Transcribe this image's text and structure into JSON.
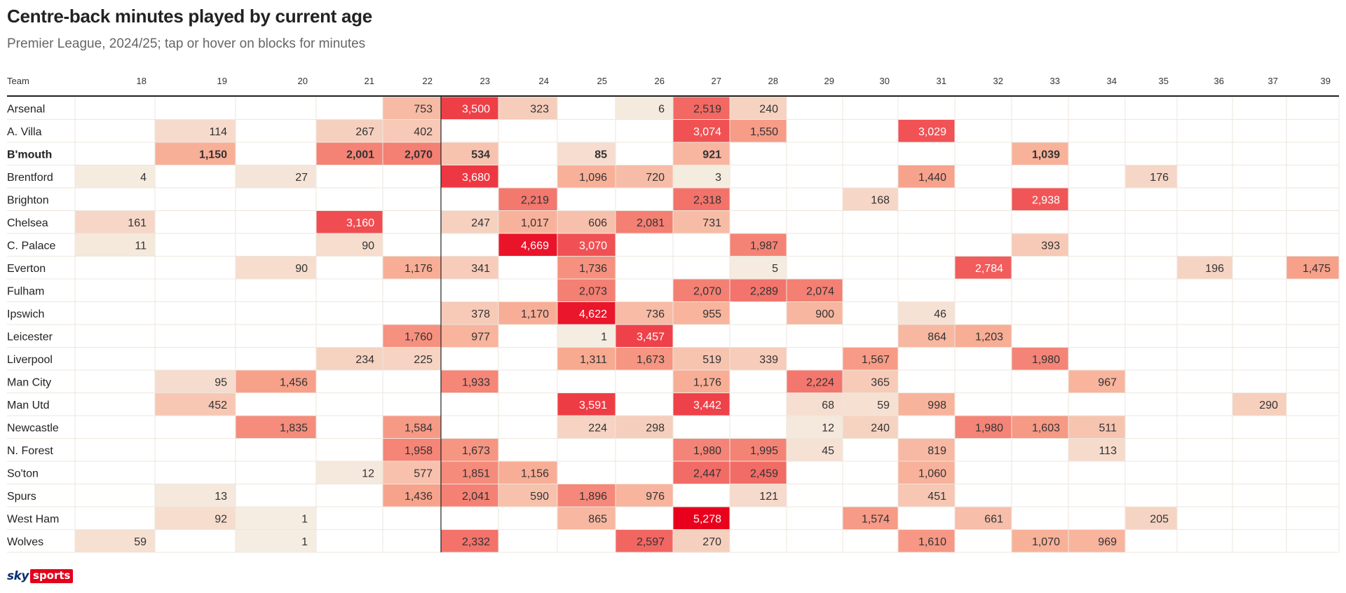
{
  "title": "Centre-back minutes played by current age",
  "subtitle": "Premier League, 2024/25; tap or hover on blocks for minutes",
  "logo": {
    "sky": "sky",
    "sports": "sports"
  },
  "colors": {
    "scale_low": "#f5efe4",
    "scale_high": "#e8001c",
    "grid": "#ede6dd",
    "axis_line": "#222222",
    "text_dark": "#333333",
    "text_light": "#ffffff"
  },
  "chart_data": {
    "type": "heatmap",
    "title": "Centre-back minutes played by current age",
    "subtitle": "Premier League, 2024/25; tap or hover on blocks for minutes",
    "row_header": "Team",
    "ages": [
      18,
      19,
      20,
      21,
      22,
      23,
      24,
      25,
      26,
      27,
      28,
      29,
      30,
      31,
      32,
      33,
      34,
      35,
      36,
      37,
      39
    ],
    "age_labels": [
      "18",
      "19",
      "20",
      "21",
      "22",
      "23",
      "24",
      "25",
      "26",
      "27",
      "28",
      "29",
      "30",
      "31",
      "32",
      "33",
      "34",
      "35",
      "36",
      "37",
      "39"
    ],
    "highlighted_team": "B'mouth",
    "vertical_marker_before_age": 23,
    "value_max": 5278,
    "rows": [
      {
        "team": "Arsenal",
        "values": [
          null,
          null,
          null,
          null,
          753,
          3500,
          323,
          null,
          6,
          2519,
          240,
          null,
          null,
          null,
          null,
          null,
          null,
          null,
          null,
          null,
          null
        ]
      },
      {
        "team": "A. Villa",
        "values": [
          null,
          114,
          null,
          267,
          402,
          null,
          null,
          null,
          null,
          3074,
          1550,
          null,
          null,
          3029,
          null,
          null,
          null,
          null,
          null,
          null,
          null
        ]
      },
      {
        "team": "B'mouth",
        "values": [
          null,
          1150,
          null,
          2001,
          2070,
          534,
          null,
          85,
          null,
          921,
          null,
          null,
          null,
          null,
          null,
          1039,
          null,
          null,
          null,
          null,
          null
        ]
      },
      {
        "team": "Brentford",
        "values": [
          4,
          null,
          27,
          null,
          null,
          3680,
          null,
          1096,
          720,
          3,
          null,
          null,
          null,
          1440,
          null,
          null,
          null,
          176,
          null,
          null,
          null
        ]
      },
      {
        "team": "Brighton",
        "values": [
          null,
          null,
          null,
          null,
          null,
          null,
          2219,
          null,
          null,
          2318,
          null,
          null,
          168,
          null,
          null,
          2938,
          null,
          null,
          null,
          null,
          null
        ]
      },
      {
        "team": "Chelsea",
        "values": [
          161,
          null,
          null,
          3160,
          null,
          247,
          1017,
          606,
          2081,
          731,
          null,
          null,
          null,
          null,
          null,
          null,
          null,
          null,
          null,
          null,
          null
        ]
      },
      {
        "team": "C. Palace",
        "values": [
          11,
          null,
          null,
          90,
          null,
          null,
          4669,
          3070,
          null,
          null,
          1987,
          null,
          null,
          null,
          null,
          393,
          null,
          null,
          null,
          null,
          null
        ]
      },
      {
        "team": "Everton",
        "values": [
          null,
          null,
          90,
          null,
          1176,
          341,
          null,
          1736,
          null,
          null,
          5,
          null,
          null,
          null,
          2784,
          null,
          null,
          null,
          196,
          null,
          1475
        ]
      },
      {
        "team": "Fulham",
        "values": [
          null,
          null,
          null,
          null,
          null,
          null,
          null,
          2073,
          null,
          2070,
          2289,
          2074,
          null,
          null,
          null,
          null,
          null,
          null,
          null,
          null,
          null
        ]
      },
      {
        "team": "Ipswich",
        "values": [
          null,
          null,
          null,
          null,
          null,
          378,
          1170,
          4622,
          736,
          955,
          null,
          900,
          null,
          46,
          null,
          null,
          null,
          null,
          null,
          null,
          null
        ]
      },
      {
        "team": "Leicester",
        "values": [
          null,
          null,
          null,
          null,
          1760,
          977,
          null,
          1,
          3457,
          null,
          null,
          null,
          null,
          864,
          1203,
          null,
          null,
          null,
          null,
          null,
          null
        ]
      },
      {
        "team": "Liverpool",
        "values": [
          null,
          null,
          null,
          234,
          225,
          null,
          null,
          1311,
          1673,
          519,
          339,
          null,
          1567,
          null,
          null,
          1980,
          null,
          null,
          null,
          null,
          null
        ]
      },
      {
        "team": "Man City",
        "values": [
          null,
          95,
          1456,
          null,
          null,
          1933,
          null,
          null,
          null,
          1176,
          null,
          2224,
          365,
          null,
          null,
          null,
          967,
          null,
          null,
          null,
          null
        ]
      },
      {
        "team": "Man Utd",
        "values": [
          null,
          452,
          null,
          null,
          null,
          null,
          null,
          3591,
          null,
          3442,
          null,
          68,
          59,
          998,
          null,
          null,
          null,
          null,
          null,
          290,
          null
        ]
      },
      {
        "team": "Newcastle",
        "values": [
          null,
          null,
          1835,
          null,
          1584,
          null,
          null,
          224,
          298,
          null,
          null,
          12,
          240,
          null,
          1980,
          1603,
          511,
          null,
          null,
          null,
          null
        ]
      },
      {
        "team": "N. Forest",
        "values": [
          null,
          null,
          null,
          null,
          1958,
          1673,
          null,
          null,
          null,
          1980,
          1995,
          45,
          null,
          819,
          null,
          null,
          113,
          null,
          null,
          null,
          null
        ]
      },
      {
        "team": "So'ton",
        "values": [
          null,
          null,
          null,
          12,
          577,
          1851,
          1156,
          null,
          null,
          2447,
          2459,
          null,
          null,
          1060,
          null,
          null,
          null,
          null,
          null,
          null,
          null
        ]
      },
      {
        "team": "Spurs",
        "values": [
          null,
          13,
          null,
          null,
          1436,
          2041,
          590,
          1896,
          976,
          null,
          121,
          null,
          null,
          451,
          null,
          null,
          null,
          null,
          null,
          null,
          null
        ]
      },
      {
        "team": "West Ham",
        "values": [
          null,
          92,
          1,
          null,
          null,
          null,
          null,
          865,
          null,
          5278,
          null,
          null,
          1574,
          null,
          661,
          null,
          null,
          205,
          null,
          null,
          null
        ]
      },
      {
        "team": "Wolves",
        "values": [
          59,
          null,
          1,
          null,
          null,
          2332,
          null,
          null,
          2597,
          270,
          null,
          null,
          null,
          1610,
          null,
          1070,
          969,
          null,
          null,
          null,
          null
        ]
      }
    ]
  }
}
